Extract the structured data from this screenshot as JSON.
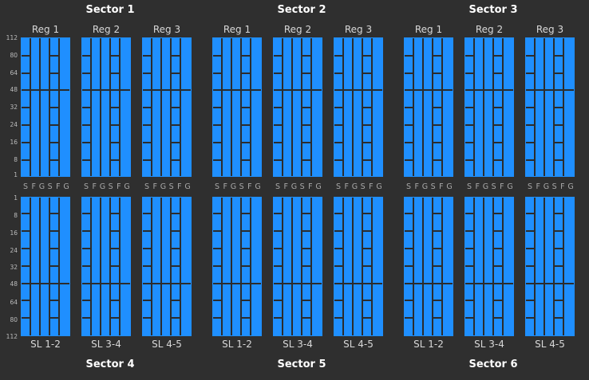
{
  "sectors_top": [
    {
      "title": "Sector 1",
      "regions": [
        "Reg 1",
        "Reg 2",
        "Reg 3"
      ]
    },
    {
      "title": "Sector 2",
      "regions": [
        "Reg 1",
        "Reg 2",
        "Reg 3"
      ]
    },
    {
      "title": "Sector 3",
      "regions": [
        "Reg 1",
        "Reg 2",
        "Reg 3"
      ]
    }
  ],
  "sectors_bottom": [
    {
      "title": "Sector 4",
      "superlayers": [
        "SL 1-2",
        "SL 3-4",
        "SL 4-5"
      ]
    },
    {
      "title": "Sector 5",
      "superlayers": [
        "SL 1-2",
        "SL 3-4",
        "SL 4-5"
      ]
    },
    {
      "title": "Sector 6",
      "superlayers": [
        "SL 1-2",
        "SL 3-4",
        "SL 4-5"
      ]
    }
  ],
  "row_labels_top": [
    "112",
    "80",
    "64",
    "48",
    "32",
    "24",
    "16",
    "8",
    "1"
  ],
  "row_labels_bottom": [
    "1",
    "8",
    "16",
    "24",
    "32",
    "48",
    "64",
    "80",
    "112"
  ],
  "layer_labels": [
    "S",
    "F",
    "G",
    "S",
    "F",
    "G"
  ],
  "colors": {
    "cell": "#1f8fff",
    "grid": "#2c2c2c",
    "background": "#2f2f2f"
  }
}
